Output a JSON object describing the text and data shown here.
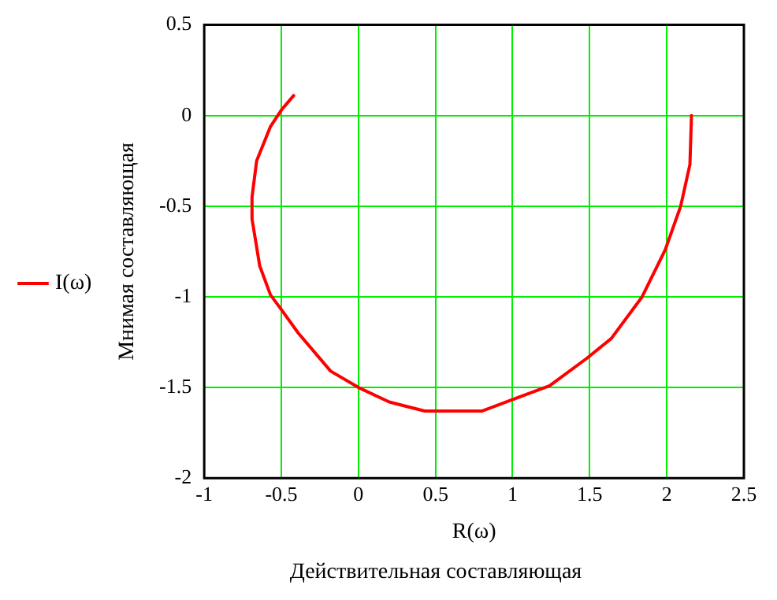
{
  "chart_data": {
    "type": "line",
    "xlabel": "R(ω)",
    "ylabel": "Мнимая составляющая",
    "annotations": [
      "Действительная составляющая"
    ],
    "series": [
      {
        "name": "I(ω)",
        "color": "#ff0000",
        "x": [
          2.16,
          2.15,
          2.09,
          1.99,
          1.84,
          1.64,
          1.48,
          1.24,
          0.99,
          0.8,
          0.43,
          0.2,
          0,
          -0.18,
          -0.39,
          -0.5,
          -0.57,
          -0.64,
          -0.69,
          -0.69,
          -0.66,
          -0.57,
          -0.5,
          -0.42
        ],
        "values": [
          0,
          -0.27,
          -0.5,
          -0.74,
          -1.0,
          -1.23,
          -1.34,
          -1.49,
          -1.57,
          -1.63,
          -1.63,
          -1.58,
          -1.5,
          -1.41,
          -1.2,
          -1.07,
          -0.99,
          -0.83,
          -0.57,
          -0.45,
          -0.25,
          -0.06,
          0.03,
          0.11
        ]
      }
    ],
    "xlim": [
      -1,
      2.5
    ],
    "xticks": [
      -1,
      -0.5,
      0,
      0.5,
      1,
      1.5,
      2,
      2.5
    ],
    "ylim": [
      -2,
      0.5
    ],
    "yticks": [
      -2,
      -1.5,
      -1,
      -0.5,
      0,
      0.5
    ],
    "grid": true,
    "legend": "left",
    "marker": "none",
    "line_style": "solid"
  }
}
